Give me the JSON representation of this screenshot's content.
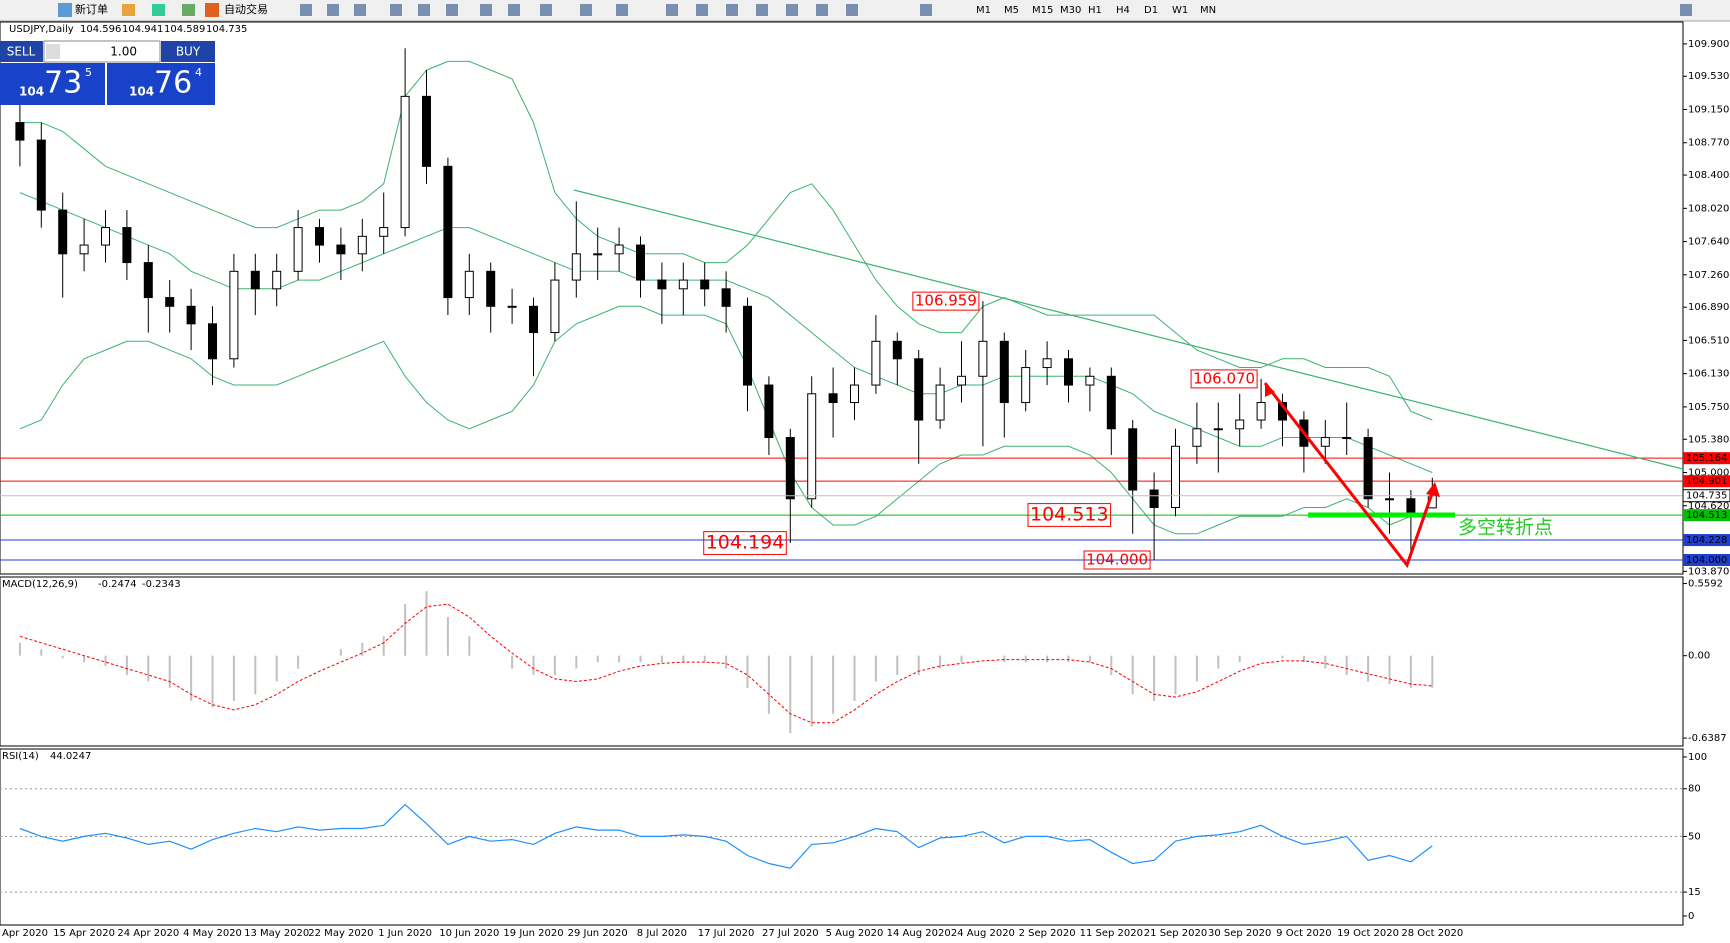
{
  "toolbar": {
    "new_order": "新订单",
    "auto_trading": "自动交易",
    "timeframes": [
      "M1",
      "M5",
      "M15",
      "M30",
      "H1",
      "H4",
      "D1",
      "W1",
      "MN"
    ]
  },
  "one_click": {
    "sell": "SELL",
    "lot": "1.00",
    "buy": "BUY",
    "bid": {
      "big": "104",
      "main": "73",
      "pip": "5"
    },
    "ask": {
      "big": "104",
      "main": "76",
      "pip": "4"
    }
  },
  "chart_data": [
    {
      "type": "candlestick",
      "title": "USDJPY,Daily",
      "categories": [
        "Apr 2020",
        null,
        null,
        "15 Apr 2020",
        null,
        null,
        "24 Apr 2020",
        null,
        null,
        "4 May 2020",
        null,
        null,
        "13 May 2020",
        null,
        null,
        "22 May 2020",
        null,
        null,
        "1 Jun 2020",
        null,
        null,
        "10 Jun 2020",
        null,
        null,
        "19 Jun 2020",
        null,
        null,
        "29 Jun 2020",
        null,
        null,
        "8 Jul 2020",
        null,
        null,
        "17 Jul 2020",
        null,
        null,
        "27 Jul 2020",
        null,
        null,
        "5 Aug 2020",
        null,
        null,
        "14 Aug 2020",
        null,
        null,
        "24 Aug 2020",
        null,
        null,
        "2 Sep 2020",
        null,
        null,
        "11 Sep 2020",
        null,
        null,
        "21 Sep 2020",
        null,
        null,
        "30 Sep 2020",
        null,
        null,
        "9 Oct 2020",
        null,
        null,
        "19 Oct 2020",
        null,
        null,
        "28 Oct 2020"
      ],
      "open": [
        109.0,
        108.8,
        108.0,
        107.5,
        107.6,
        107.8,
        107.4,
        107.0,
        106.9,
        106.7,
        106.3,
        107.3,
        107.1,
        107.3,
        107.8,
        107.6,
        107.5,
        107.7,
        107.8,
        109.3,
        108.5,
        107.0,
        107.3,
        106.9,
        106.9,
        106.6,
        107.2,
        107.5,
        107.5,
        107.6,
        107.2,
        107.1,
        107.2,
        107.1,
        106.9,
        106.0,
        105.4,
        104.7,
        105.9,
        105.8,
        106.0,
        106.5,
        106.3,
        105.6,
        106.0,
        106.1,
        106.5,
        105.8,
        106.2,
        106.3,
        106.0,
        106.1,
        105.5,
        104.8,
        104.6,
        105.3,
        105.5,
        105.5,
        105.6,
        105.8,
        105.6,
        105.3,
        105.4,
        105.4,
        104.7,
        104.7,
        104.596
      ],
      "high": [
        109.2,
        109.0,
        108.2,
        107.9,
        108.0,
        108.0,
        107.6,
        107.2,
        107.1,
        106.9,
        107.5,
        107.5,
        107.5,
        108.0,
        107.9,
        107.8,
        107.9,
        108.2,
        109.85,
        109.6,
        108.6,
        107.5,
        107.4,
        107.1,
        107.0,
        107.4,
        108.1,
        107.8,
        107.8,
        107.7,
        107.4,
        107.4,
        107.4,
        107.3,
        107.0,
        106.1,
        105.5,
        106.1,
        106.2,
        106.2,
        106.8,
        106.6,
        106.4,
        106.2,
        106.5,
        106.959,
        106.6,
        106.4,
        106.5,
        106.4,
        106.2,
        106.2,
        105.6,
        105.0,
        105.5,
        105.8,
        105.8,
        105.9,
        106.07,
        105.9,
        105.7,
        105.6,
        105.8,
        105.5,
        105.0,
        104.8,
        104.941
      ],
      "low": [
        108.5,
        107.8,
        107.0,
        107.3,
        107.4,
        107.2,
        106.6,
        106.6,
        106.4,
        106.0,
        106.2,
        106.8,
        106.9,
        107.2,
        107.4,
        107.2,
        107.3,
        107.5,
        107.7,
        108.3,
        106.8,
        106.8,
        106.6,
        106.7,
        106.1,
        106.5,
        107.0,
        107.2,
        107.3,
        107.0,
        106.7,
        106.8,
        106.9,
        106.6,
        105.7,
        105.2,
        104.194,
        104.6,
        105.4,
        105.6,
        105.9,
        106.0,
        105.1,
        105.5,
        105.8,
        105.3,
        105.4,
        105.7,
        106.0,
        105.8,
        105.7,
        105.2,
        104.3,
        104.0,
        104.5,
        105.1,
        105.0,
        105.3,
        105.5,
        105.3,
        105.0,
        105.1,
        105.2,
        104.6,
        104.3,
        104.03,
        104.589
      ],
      "close": [
        108.8,
        108.0,
        107.5,
        107.6,
        107.8,
        107.4,
        107.0,
        106.9,
        106.7,
        106.3,
        107.3,
        107.1,
        107.3,
        107.8,
        107.6,
        107.5,
        107.7,
        107.8,
        109.3,
        108.5,
        107.0,
        107.3,
        106.9,
        106.9,
        106.6,
        107.2,
        107.5,
        107.5,
        107.6,
        107.2,
        107.1,
        107.2,
        107.1,
        106.9,
        106.0,
        105.4,
        104.7,
        105.9,
        105.8,
        106.0,
        106.5,
        106.3,
        105.6,
        106.0,
        106.1,
        106.5,
        105.8,
        106.2,
        106.3,
        106.0,
        106.1,
        105.5,
        104.8,
        104.6,
        105.3,
        105.5,
        105.5,
        105.6,
        105.8,
        105.6,
        105.3,
        105.4,
        105.4,
        104.7,
        104.7,
        104.5,
        104.735
      ],
      "high_labels": [
        null,
        null,
        null,
        null,
        null,
        null,
        null,
        null,
        null,
        null,
        null,
        null,
        null,
        null,
        null,
        null,
        null,
        null,
        null,
        null,
        null,
        null,
        null,
        null,
        null,
        null,
        null,
        null,
        null,
        null,
        null,
        null,
        null,
        null,
        null,
        null,
        null,
        null,
        null,
        null,
        null,
        null,
        null,
        null,
        null,
        "106.959",
        null,
        null,
        null,
        null,
        null,
        null,
        null,
        null,
        null,
        null,
        null,
        null,
        "106.070",
        null,
        null,
        null,
        null,
        null,
        null,
        null,
        null
      ],
      "low_labels": [
        null,
        null,
        null,
        null,
        null,
        null,
        null,
        null,
        null,
        null,
        null,
        null,
        null,
        null,
        null,
        null,
        null,
        null,
        null,
        null,
        null,
        null,
        null,
        null,
        null,
        null,
        null,
        null,
        null,
        null,
        null,
        null,
        null,
        null,
        null,
        null,
        "104.194",
        null,
        null,
        null,
        null,
        null,
        null,
        null,
        null,
        null,
        null,
        null,
        null,
        null,
        null,
        null,
        null,
        "104.000",
        null,
        null,
        null,
        null,
        null,
        null,
        null,
        null,
        null,
        null,
        null,
        null,
        null
      ],
      "bands": [
        {
          "name": "upper",
          "color": "#3cb371",
          "values": [
            109.0,
            109.0,
            108.9,
            108.7,
            108.5,
            108.4,
            108.3,
            108.2,
            108.1,
            108.0,
            107.9,
            107.8,
            107.8,
            107.9,
            108.0,
            108.0,
            108.1,
            108.3,
            109.3,
            109.6,
            109.7,
            109.7,
            109.6,
            109.5,
            109.0,
            108.2,
            107.9,
            107.7,
            107.6,
            107.5,
            107.5,
            107.5,
            107.4,
            107.4,
            107.6,
            107.9,
            108.2,
            108.3,
            108.0,
            107.6,
            107.2,
            106.9,
            106.7,
            106.6,
            106.6,
            106.9,
            107.0,
            106.9,
            106.8,
            106.8,
            106.8,
            106.8,
            106.8,
            106.8,
            106.6,
            106.4,
            106.3,
            106.2,
            106.2,
            106.3,
            106.3,
            106.2,
            106.2,
            106.2,
            106.1,
            105.7,
            105.6
          ]
        },
        {
          "name": "middle",
          "color": "#3cb371",
          "values": [
            108.2,
            108.1,
            108.0,
            107.9,
            107.8,
            107.7,
            107.6,
            107.5,
            107.3,
            107.2,
            107.1,
            107.1,
            107.1,
            107.2,
            107.2,
            107.3,
            107.4,
            107.5,
            107.6,
            107.7,
            107.8,
            107.8,
            107.7,
            107.6,
            107.5,
            107.4,
            107.3,
            107.3,
            107.3,
            107.2,
            107.2,
            107.2,
            107.2,
            107.2,
            107.1,
            107.0,
            106.8,
            106.6,
            106.4,
            106.2,
            106.1,
            106.0,
            105.9,
            105.9,
            106.0,
            106.0,
            106.1,
            106.1,
            106.1,
            106.1,
            106.1,
            106.0,
            105.9,
            105.7,
            105.6,
            105.5,
            105.4,
            105.3,
            105.3,
            105.4,
            105.4,
            105.4,
            105.4,
            105.3,
            105.2,
            105.1,
            105.0
          ]
        },
        {
          "name": "lower",
          "color": "#3cb371",
          "values": [
            105.5,
            105.6,
            106.0,
            106.3,
            106.4,
            106.5,
            106.5,
            106.4,
            106.3,
            106.1,
            106.0,
            106.0,
            106.0,
            106.1,
            106.2,
            106.3,
            106.4,
            106.5,
            106.1,
            105.8,
            105.6,
            105.5,
            105.6,
            105.7,
            106.0,
            106.5,
            106.7,
            106.8,
            106.9,
            106.9,
            106.8,
            106.8,
            106.8,
            106.7,
            106.2,
            105.6,
            105.0,
            104.6,
            104.4,
            104.4,
            104.5,
            104.7,
            104.9,
            105.1,
            105.2,
            105.2,
            105.3,
            105.3,
            105.3,
            105.3,
            105.2,
            105.0,
            104.7,
            104.4,
            104.3,
            104.3,
            104.4,
            104.5,
            104.5,
            104.5,
            104.6,
            104.6,
            104.7,
            104.6,
            104.4,
            104.5,
            104.5
          ]
        }
      ],
      "hlines": [
        {
          "value": 105.164,
          "color": "#ff0000"
        },
        {
          "value": 104.901,
          "color": "#ff0000"
        },
        {
          "value": 104.513,
          "color": "#00c000"
        },
        {
          "value": 104.228,
          "color": "#1f3fd0"
        },
        {
          "value": 104.0,
          "label": "104.000",
          "color": "#1f3fd0"
        }
      ],
      "ylim": [
        103.84,
        110.15
      ],
      "yticks": [
        {
          "value": 109.9,
          "label": "109.900"
        },
        {
          "value": 109.53,
          "label": "109.530"
        },
        {
          "value": 109.15,
          "label": "109.150"
        },
        {
          "value": 108.77,
          "label": "108.770"
        },
        {
          "value": 108.4,
          "label": "108.400"
        },
        {
          "value": 108.02,
          "label": "108.020"
        },
        {
          "value": 107.64,
          "label": "107.640"
        },
        {
          "value": 107.26,
          "label": "107.260"
        },
        {
          "value": 106.89,
          "label": "106.890"
        },
        {
          "value": 106.51,
          "label": "106.510"
        },
        {
          "value": 106.13,
          "label": "106.130"
        },
        {
          "value": 105.75,
          "label": "105.750"
        },
        {
          "value": 105.38,
          "label": "105.380"
        },
        {
          "value": 105.0,
          "label": "105.000"
        },
        {
          "value": 104.62,
          "label": "104.620"
        },
        {
          "value": 103.87,
          "label": "103.870"
        }
      ],
      "note": "多空转折点"
    },
    {
      "type": "macd",
      "title": "MACD(12,26,9)",
      "series": [
        {
          "name": "MACD",
          "color": "#c0c0c0",
          "values": [
            0.1,
            0.05,
            -0.02,
            -0.05,
            -0.08,
            -0.15,
            -0.2,
            -0.25,
            -0.35,
            -0.4,
            -0.35,
            -0.3,
            -0.2,
            -0.1,
            0.0,
            0.05,
            0.1,
            0.15,
            0.4,
            0.5,
            0.3,
            0.15,
            0.0,
            -0.1,
            -0.15,
            -0.15,
            -0.1,
            -0.05,
            -0.05,
            -0.05,
            -0.05,
            -0.05,
            -0.05,
            -0.1,
            -0.25,
            -0.45,
            -0.6,
            -0.55,
            -0.45,
            -0.35,
            -0.2,
            -0.15,
            -0.15,
            -0.1,
            -0.05,
            0.0,
            -0.05,
            -0.05,
            -0.05,
            -0.05,
            -0.05,
            -0.15,
            -0.3,
            -0.35,
            -0.3,
            -0.2,
            -0.1,
            -0.05,
            0.0,
            -0.02,
            -0.05,
            -0.1,
            -0.15,
            -0.2,
            -0.22,
            -0.25,
            -0.2474
          ]
        },
        {
          "name": "Signal",
          "color": "#ff0000",
          "values": [
            0.15,
            0.1,
            0.05,
            0.0,
            -0.05,
            -0.1,
            -0.15,
            -0.2,
            -0.3,
            -0.38,
            -0.42,
            -0.38,
            -0.3,
            -0.2,
            -0.12,
            -0.05,
            0.02,
            0.1,
            0.25,
            0.38,
            0.4,
            0.3,
            0.15,
            0.02,
            -0.1,
            -0.18,
            -0.2,
            -0.18,
            -0.12,
            -0.08,
            -0.06,
            -0.05,
            -0.05,
            -0.06,
            -0.15,
            -0.3,
            -0.45,
            -0.52,
            -0.52,
            -0.42,
            -0.3,
            -0.2,
            -0.12,
            -0.08,
            -0.06,
            -0.04,
            -0.03,
            -0.03,
            -0.03,
            -0.03,
            -0.05,
            -0.1,
            -0.2,
            -0.3,
            -0.32,
            -0.28,
            -0.2,
            -0.12,
            -0.06,
            -0.04,
            -0.04,
            -0.06,
            -0.1,
            -0.14,
            -0.18,
            -0.22,
            -0.2343
          ]
        }
      ],
      "ylim": [
        -0.7,
        0.61
      ],
      "yticks": [
        0.5592,
        {
          "value": 0,
          "label": "0.00"
        },
        -0.6387
      ]
    },
    {
      "type": "line",
      "title": "RSI(14)",
      "series": [
        {
          "name": "RSI",
          "color": "#1e90ff",
          "values": [
            55,
            50,
            47,
            50,
            52,
            49,
            45,
            47,
            42,
            48,
            52,
            55,
            53,
            56,
            54,
            55,
            55,
            57,
            70,
            58,
            45,
            50,
            47,
            48,
            45,
            52,
            56,
            54,
            54,
            50,
            50,
            51,
            50,
            47,
            38,
            33,
            30,
            45,
            46,
            50,
            55,
            53,
            43,
            49,
            50,
            53,
            46,
            50,
            50,
            47,
            48,
            40,
            33,
            35,
            47,
            50,
            51,
            53,
            57,
            50,
            45,
            47,
            50,
            35,
            38,
            34,
            44.0247
          ]
        }
      ],
      "ylim": [
        -5.7,
        105
      ],
      "yticks": [
        100,
        80,
        50,
        15,
        0
      ],
      "grid_levels": [
        80,
        50,
        15
      ]
    }
  ]
}
